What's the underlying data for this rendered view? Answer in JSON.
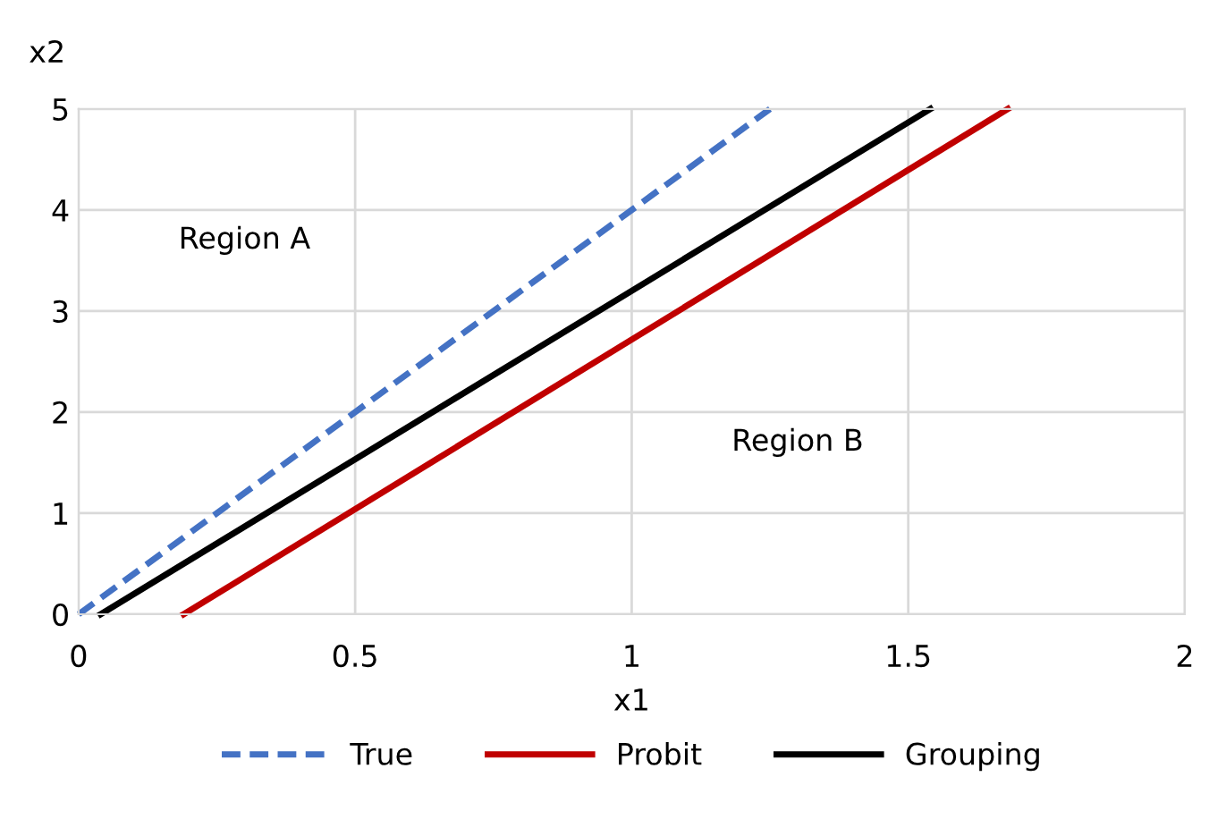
{
  "chart_data": {
    "type": "line",
    "xlabel": "x1",
    "ylabel": "x2",
    "series": [
      {
        "name": "True",
        "color": "#4472c4",
        "line_style": "dashed",
        "x": [
          0,
          1.25
        ],
        "values": [
          0,
          5
        ]
      },
      {
        "name": "Probit",
        "color": "#c00000",
        "line_style": "solid",
        "x": [
          0.19,
          1.68
        ],
        "values": [
          0,
          5
        ]
      },
      {
        "name": "Grouping",
        "color": "#000000",
        "line_style": "solid",
        "x": [
          0.04,
          1.54
        ],
        "values": [
          0,
          5
        ]
      }
    ],
    "xlim": [
      0,
      2
    ],
    "ylim": [
      0,
      5
    ],
    "xticks": [
      0,
      0.5,
      1,
      1.5,
      2
    ],
    "yticks": [
      0,
      1,
      2,
      3,
      4,
      5
    ],
    "grid": true,
    "legend": "bottom",
    "marker": "none",
    "annotations": [
      "Region A",
      "Region B"
    ]
  }
}
